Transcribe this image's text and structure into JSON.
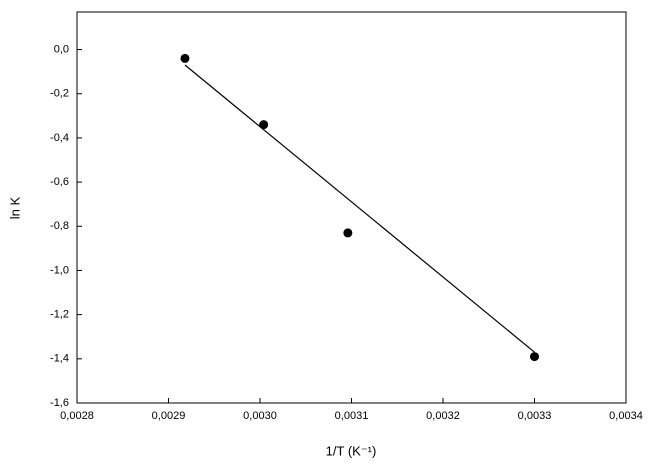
{
  "chart_data": {
    "type": "scatter",
    "xlabel": "1/T (K⁻¹)",
    "ylabel": "ln K",
    "xlim": [
      0.0028,
      0.0034
    ],
    "xticks": [
      {
        "value": 0.0028,
        "label": "0,0028"
      },
      {
        "value": 0.0029,
        "label": "0,0029"
      },
      {
        "value": 0.003,
        "label": "0,0030"
      },
      {
        "value": 0.0031,
        "label": "0,0031"
      },
      {
        "value": 0.0032,
        "label": "0,0032"
      },
      {
        "value": 0.0033,
        "label": "0,0033"
      },
      {
        "value": 0.0034,
        "label": "0,0034"
      }
    ],
    "ylim": [
      -1.6,
      0.17
    ],
    "yticks": [
      {
        "value": -1.6,
        "label": "-1,6"
      },
      {
        "value": -1.4,
        "label": "-1,4"
      },
      {
        "value": -1.2,
        "label": "-1,2"
      },
      {
        "value": -1.0,
        "label": "-1,0"
      },
      {
        "value": -0.8,
        "label": "-0,8"
      },
      {
        "value": -0.6,
        "label": "-0,6"
      },
      {
        "value": -0.4,
        "label": "-0,4"
      },
      {
        "value": -0.2,
        "label": "-0,2"
      },
      {
        "value": 0.0,
        "label": "0,0"
      }
    ],
    "series": [
      {
        "kind": "points",
        "color": "#000000",
        "x": [
          0.002918,
          0.003004,
          0.003096,
          0.0033
        ],
        "values": [
          -0.04,
          -0.34,
          -0.83,
          -1.39
        ]
      },
      {
        "kind": "line",
        "color": "#000000",
        "x": [
          0.002918,
          0.0033
        ],
        "values": [
          -0.07,
          -1.37
        ]
      }
    ]
  }
}
